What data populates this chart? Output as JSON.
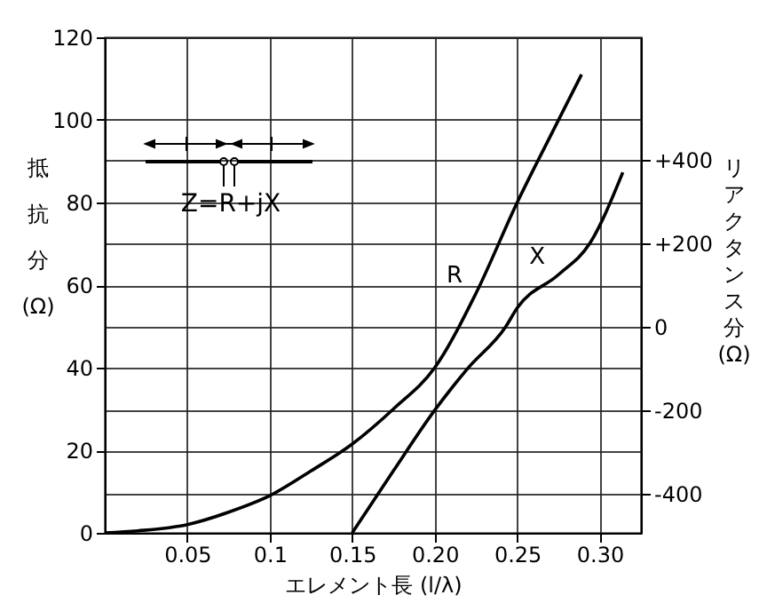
{
  "chart_data": {
    "type": "line",
    "xlabel": "エレメント長 (l/λ)",
    "ylabel": "抵抗分(Ω)",
    "y2label": "リアクタンス分(Ω)",
    "annotations": [
      "Z=R+jX"
    ],
    "xlim": [
      0,
      0.325
    ],
    "xticks": [
      0.05,
      {
        "value": 0.1,
        "label": "0.1"
      },
      0.15,
      {
        "value": 0.2,
        "label": "0.20"
      },
      0.25,
      {
        "value": 0.3,
        "label": "0.30"
      }
    ],
    "ylim": [
      0,
      120
    ],
    "yticks": [
      0,
      20,
      40,
      60,
      80,
      100,
      120
    ],
    "y2lim": [
      -494,
      694
    ],
    "y2ticks": [
      {
        "value": -400,
        "label": "-400"
      },
      {
        "value": -200,
        "label": "-200"
      },
      0,
      {
        "value": 200,
        "label": "+200"
      },
      {
        "value": 400,
        "label": "+400"
      }
    ],
    "grid": true,
    "marker": "none",
    "line_style": "solid",
    "series": [
      {
        "name": "R",
        "color": "#000000",
        "x": [
          0,
          0.02,
          0.05,
          0.075,
          0.1,
          0.125,
          0.15,
          0.175,
          0.2,
          0.225,
          0.25,
          0.27,
          0.289
        ],
        "values": [
          0,
          0.5,
          2,
          5,
          9,
          15,
          21.5,
          30,
          40,
          58,
          80,
          96,
          111
        ]
      },
      {
        "name": "X",
        "color": "#000000",
        "axis": "y2",
        "x": [
          0.15,
          0.175,
          0.2,
          0.22,
          0.243,
          0.25,
          0.275,
          0.294,
          0.314
        ],
        "values": [
          -494,
          -345,
          -200,
          -100,
          0,
          45,
          125,
          200,
          370
        ]
      }
    ]
  }
}
